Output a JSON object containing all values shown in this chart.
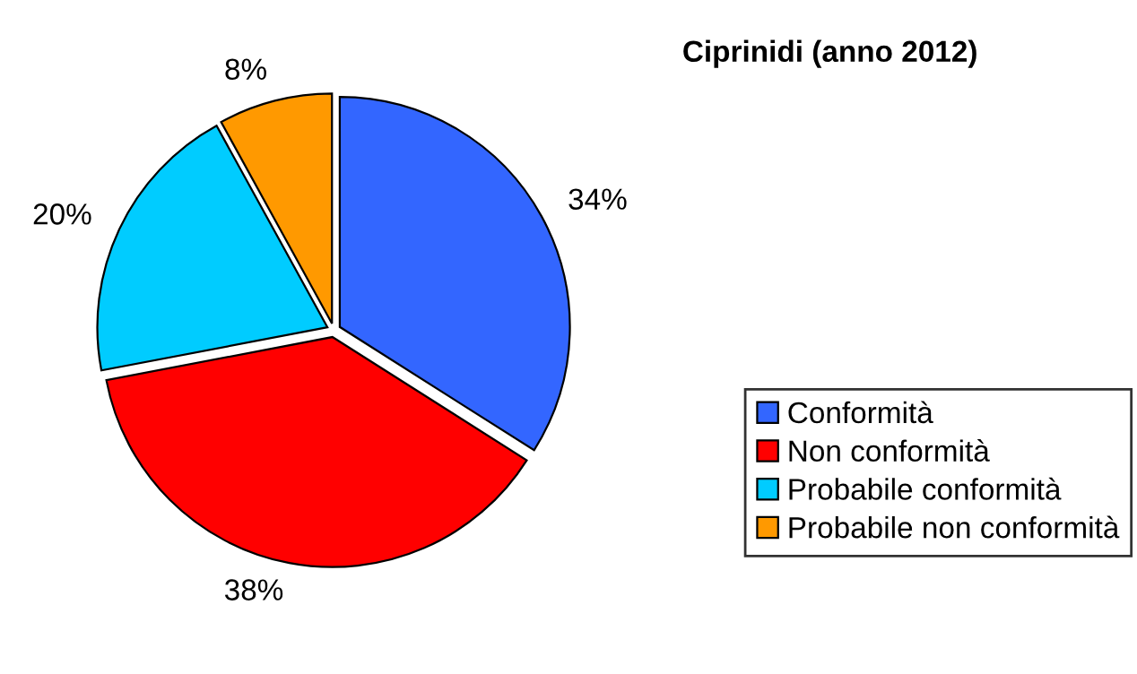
{
  "chart_data": {
    "type": "pie",
    "title": "Ciprinidi (anno 2012)",
    "categories": [
      "Conformità",
      "Non conformità",
      "Probabile conformità",
      "Probabile non conformità"
    ],
    "values": [
      34,
      38,
      20,
      8
    ],
    "colors": [
      "#3366ff",
      "#ff0000",
      "#00ccff",
      "#ff9900"
    ],
    "value_labels": [
      "34%",
      "38%",
      "20%",
      "8%"
    ],
    "legend": "right"
  }
}
